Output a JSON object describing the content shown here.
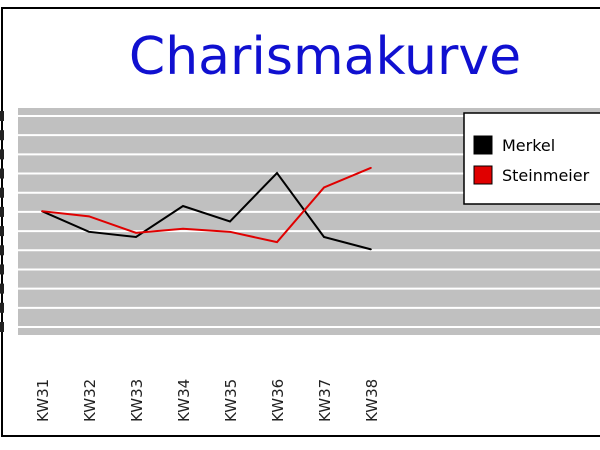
{
  "chart_data": {
    "type": "line",
    "title": "Charismakurve",
    "categories": [
      "KW31",
      "KW32",
      "KW33",
      "KW34",
      "KW35",
      "KW36",
      "KW37",
      "KW38"
    ],
    "series": [
      {
        "name": "Merkel",
        "color": "#000000",
        "values": [
          -1.0,
          1.0,
          1.5,
          -1.5,
          0.0,
          -4.7,
          1.5,
          2.7
        ]
      },
      {
        "name": "Steinmeier",
        "color": "#e00000",
        "values": [
          -1.0,
          -0.5,
          1.1,
          0.7,
          1.0,
          2.0,
          -3.3,
          -5.2
        ]
      }
    ],
    "ylim": [
      -11,
      11
    ],
    "grid": true,
    "legend": "top-right",
    "background_color": "#c0c0c0"
  }
}
